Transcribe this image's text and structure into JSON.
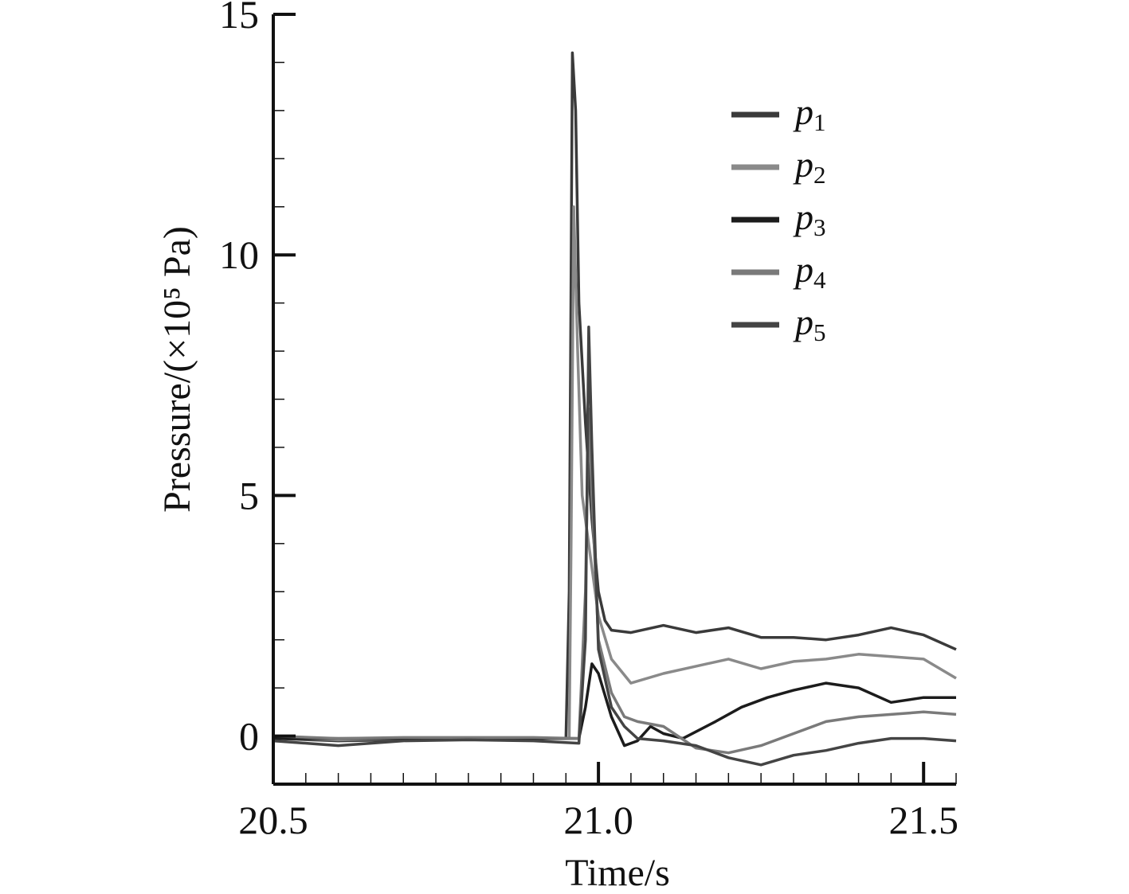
{
  "chart_data": {
    "type": "line",
    "title": "",
    "xlabel": "Time/s",
    "ylabel": "Pressure/(×10⁵ Pa)",
    "xlim": [
      20.5,
      21.55
    ],
    "ylim": [
      -1.0,
      15
    ],
    "x_ticks": [
      "20.5",
      "21.0",
      "21.5"
    ],
    "y_ticks": [
      "0",
      "5",
      "10",
      "15"
    ],
    "grid": false,
    "legend_position": "top-right",
    "series": [
      {
        "name": "p1",
        "color": "#3a3a3a",
        "points": [
          [
            20.5,
            -0.05
          ],
          [
            20.6,
            -0.1
          ],
          [
            20.7,
            -0.08
          ],
          [
            20.8,
            -0.05
          ],
          [
            20.9,
            -0.05
          ],
          [
            20.95,
            -0.05
          ],
          [
            20.955,
            3.0
          ],
          [
            20.96,
            14.2
          ],
          [
            20.965,
            13.0
          ],
          [
            20.97,
            9.0
          ],
          [
            20.98,
            6.5
          ],
          [
            20.99,
            4.5
          ],
          [
            21.0,
            3.0
          ],
          [
            21.01,
            2.4
          ],
          [
            21.02,
            2.2
          ],
          [
            21.05,
            2.15
          ],
          [
            21.1,
            2.3
          ],
          [
            21.15,
            2.15
          ],
          [
            21.2,
            2.25
          ],
          [
            21.25,
            2.05
          ],
          [
            21.3,
            2.05
          ],
          [
            21.35,
            2.0
          ],
          [
            21.4,
            2.1
          ],
          [
            21.45,
            2.25
          ],
          [
            21.5,
            2.1
          ],
          [
            21.55,
            1.8
          ]
        ]
      },
      {
        "name": "p2",
        "color": "#8a8a8a",
        "points": [
          [
            20.5,
            -0.03
          ],
          [
            20.6,
            -0.08
          ],
          [
            20.7,
            -0.05
          ],
          [
            20.8,
            -0.05
          ],
          [
            20.9,
            -0.05
          ],
          [
            20.955,
            -0.05
          ],
          [
            20.958,
            4.0
          ],
          [
            20.962,
            11.0
          ],
          [
            20.968,
            8.0
          ],
          [
            20.975,
            5.0
          ],
          [
            20.99,
            3.5
          ],
          [
            21.0,
            2.5
          ],
          [
            21.02,
            1.6
          ],
          [
            21.05,
            1.1
          ],
          [
            21.1,
            1.3
          ],
          [
            21.15,
            1.45
          ],
          [
            21.2,
            1.6
          ],
          [
            21.25,
            1.4
          ],
          [
            21.3,
            1.55
          ],
          [
            21.35,
            1.6
          ],
          [
            21.4,
            1.7
          ],
          [
            21.45,
            1.65
          ],
          [
            21.5,
            1.6
          ],
          [
            21.55,
            1.2
          ]
        ]
      },
      {
        "name": "p3",
        "color": "#1c1c1c",
        "points": [
          [
            20.5,
            -0.05
          ],
          [
            20.6,
            -0.05
          ],
          [
            20.7,
            -0.05
          ],
          [
            20.8,
            -0.05
          ],
          [
            20.9,
            -0.05
          ],
          [
            20.97,
            -0.05
          ],
          [
            20.98,
            0.6
          ],
          [
            20.99,
            1.5
          ],
          [
            21.0,
            1.3
          ],
          [
            21.02,
            0.4
          ],
          [
            21.04,
            -0.2
          ],
          [
            21.06,
            -0.1
          ],
          [
            21.08,
            0.2
          ],
          [
            21.1,
            0.05
          ],
          [
            21.13,
            -0.05
          ],
          [
            21.18,
            0.3
          ],
          [
            21.22,
            0.6
          ],
          [
            21.26,
            0.8
          ],
          [
            21.3,
            0.95
          ],
          [
            21.35,
            1.1
          ],
          [
            21.4,
            1.0
          ],
          [
            21.45,
            0.7
          ],
          [
            21.5,
            0.8
          ],
          [
            21.55,
            0.8
          ]
        ]
      },
      {
        "name": "p4",
        "color": "#7a7a7a",
        "points": [
          [
            20.5,
            0.0
          ],
          [
            20.6,
            -0.05
          ],
          [
            20.7,
            -0.03
          ],
          [
            20.8,
            -0.03
          ],
          [
            20.9,
            -0.03
          ],
          [
            20.97,
            -0.05
          ],
          [
            20.98,
            3.0
          ],
          [
            20.985,
            6.8
          ],
          [
            20.99,
            5.0
          ],
          [
            21.0,
            2.0
          ],
          [
            21.02,
            0.9
          ],
          [
            21.04,
            0.4
          ],
          [
            21.06,
            0.3
          ],
          [
            21.1,
            0.2
          ],
          [
            21.15,
            -0.25
          ],
          [
            21.2,
            -0.35
          ],
          [
            21.25,
            -0.2
          ],
          [
            21.3,
            0.05
          ],
          [
            21.35,
            0.3
          ],
          [
            21.4,
            0.4
          ],
          [
            21.45,
            0.45
          ],
          [
            21.5,
            0.5
          ],
          [
            21.55,
            0.45
          ]
        ]
      },
      {
        "name": "p5",
        "color": "#444444",
        "points": [
          [
            20.5,
            -0.1
          ],
          [
            20.6,
            -0.2
          ],
          [
            20.7,
            -0.1
          ],
          [
            20.8,
            -0.08
          ],
          [
            20.9,
            -0.1
          ],
          [
            20.97,
            -0.15
          ],
          [
            20.98,
            2.0
          ],
          [
            20.985,
            8.5
          ],
          [
            20.99,
            6.0
          ],
          [
            21.0,
            1.8
          ],
          [
            21.02,
            0.6
          ],
          [
            21.04,
            0.2
          ],
          [
            21.06,
            -0.05
          ],
          [
            21.1,
            -0.1
          ],
          [
            21.15,
            -0.2
          ],
          [
            21.2,
            -0.45
          ],
          [
            21.25,
            -0.6
          ],
          [
            21.3,
            -0.4
          ],
          [
            21.35,
            -0.3
          ],
          [
            21.4,
            -0.15
          ],
          [
            21.45,
            -0.05
          ],
          [
            21.5,
            -0.05
          ],
          [
            21.55,
            -0.1
          ]
        ]
      }
    ],
    "legend": [
      {
        "base": "p",
        "sub": "1"
      },
      {
        "base": "p",
        "sub": "2"
      },
      {
        "base": "p",
        "sub": "3"
      },
      {
        "base": "p",
        "sub": "4"
      },
      {
        "base": "p",
        "sub": "5"
      }
    ]
  }
}
